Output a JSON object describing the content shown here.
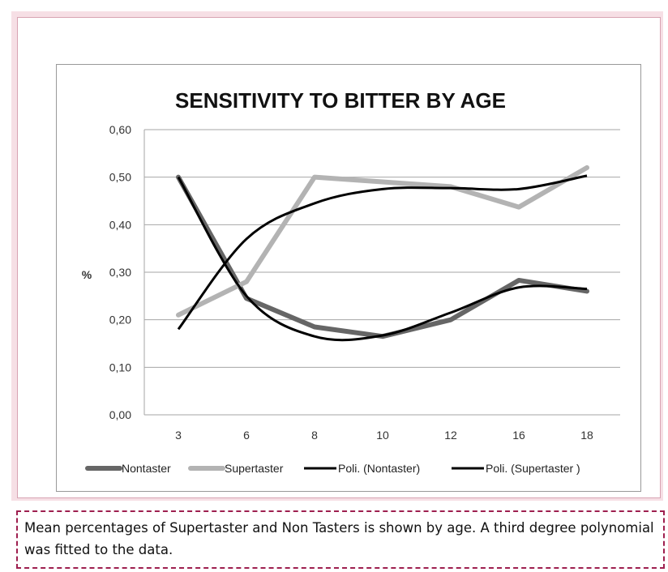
{
  "chart_data": {
    "type": "line",
    "title": "SENSITIVITY TO BITTER BY AGE",
    "xlabel": "",
    "ylabel": "%",
    "categories": [
      "3",
      "6",
      "8",
      "10",
      "12",
      "16",
      "18"
    ],
    "ylim": [
      0,
      0.6
    ],
    "yticks": [
      "0,00",
      "0,10",
      "0,20",
      "0,30",
      "0,40",
      "0,50",
      "0,60"
    ],
    "grid": true,
    "legend_position": "bottom",
    "series": [
      {
        "name": "Nontaster",
        "values": [
          0.5,
          0.245,
          0.185,
          0.165,
          0.2,
          0.283,
          0.26
        ],
        "color": "#666666",
        "style": "thick"
      },
      {
        "name": "Supertaster",
        "values": [
          0.21,
          0.28,
          0.5,
          0.49,
          0.48,
          0.437,
          0.52
        ],
        "color": "#b3b3b3",
        "style": "thick"
      },
      {
        "name": "Poli. (Nontaster)",
        "values": [
          0.5,
          0.25,
          0.165,
          0.167,
          0.215,
          0.268,
          0.265
        ],
        "color": "#000000",
        "style": "trend"
      },
      {
        "name": "Poli. (Supertaster )",
        "values": [
          0.18,
          0.37,
          0.445,
          0.475,
          0.477,
          0.475,
          0.503
        ],
        "color": "#000000",
        "style": "trend"
      }
    ]
  },
  "caption": "Mean percentages of Supertaster and Non Tasters is shown by age. A third degree polynomial was fitted to the data."
}
